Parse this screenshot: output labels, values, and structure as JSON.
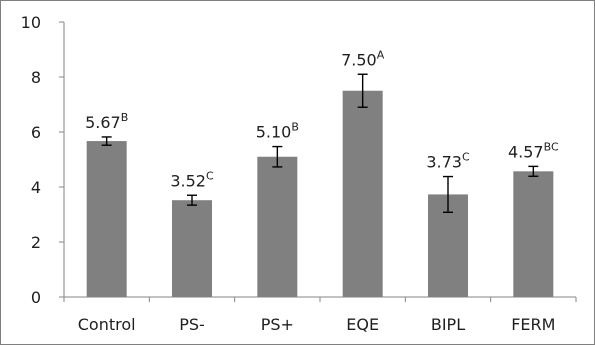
{
  "chart_data": {
    "type": "bar",
    "categories": [
      "Control",
      "PS-",
      "PS+",
      "EQE",
      "BIPL",
      "FERM"
    ],
    "values": [
      5.67,
      3.52,
      5.1,
      7.5,
      3.73,
      4.57
    ],
    "errors": [
      0.15,
      0.18,
      0.37,
      0.6,
      0.65,
      0.18
    ],
    "data_labels": [
      "5.67",
      "3.52",
      "5.10",
      "7.50",
      "3.73",
      "4.57"
    ],
    "superscripts": [
      "B",
      "C",
      "B",
      "A",
      "C",
      "BC"
    ],
    "yticks": [
      "0",
      "2",
      "4",
      "6",
      "8",
      "10"
    ],
    "ylim": [
      0,
      10
    ],
    "ytick_step": 2,
    "title": "",
    "xlabel": "",
    "ylabel": "",
    "grid": false,
    "legend": "none",
    "bar_color": "#808080",
    "axis_color": "#868686",
    "error_bar_color": "#000000"
  }
}
